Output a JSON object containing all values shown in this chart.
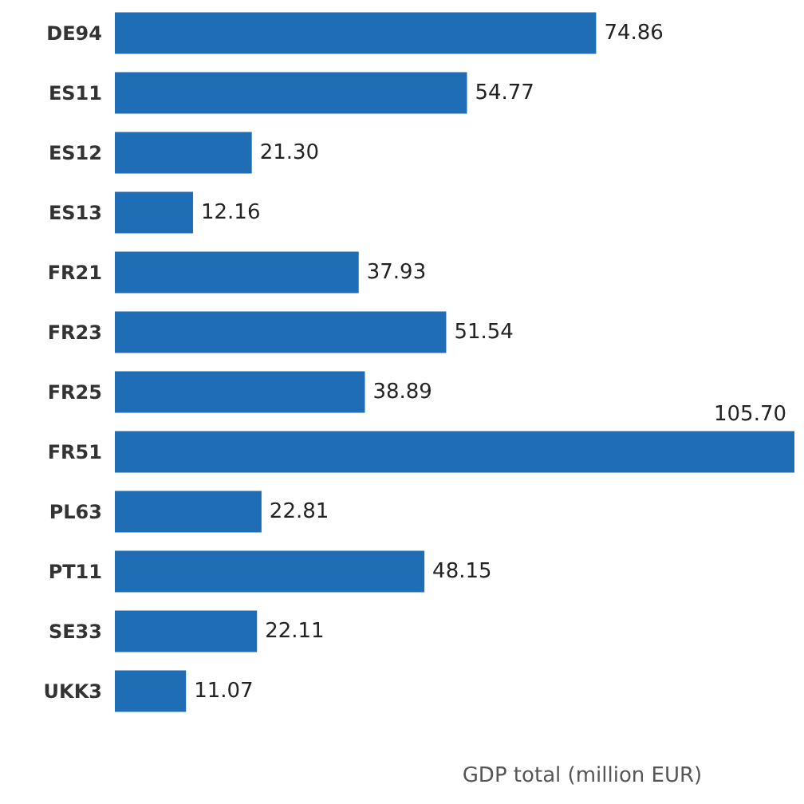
{
  "chart_data": {
    "type": "bar",
    "orientation": "horizontal",
    "xlabel": "GDP total (million EUR)",
    "categories": [
      "DE94",
      "ES11",
      "ES12",
      "ES13",
      "FR21",
      "FR23",
      "FR25",
      "FR51",
      "PL63",
      "PT11",
      "SE33",
      "UKK3"
    ],
    "values": [
      74.86,
      54.77,
      21.3,
      12.16,
      37.93,
      51.54,
      38.89,
      105.7,
      22.81,
      48.15,
      22.11,
      11.07
    ],
    "value_labels": [
      "74.86",
      "54.77",
      "21.30",
      "12.16",
      "37.93",
      "51.54",
      "38.89",
      "105.70",
      "22.81",
      "48.15",
      "22.11",
      "11.07"
    ],
    "color": "#1f6db4"
  }
}
